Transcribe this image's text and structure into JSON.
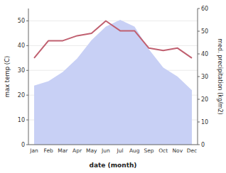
{
  "chart_data": {
    "type": "line",
    "categories": [
      "Jan",
      "Feb",
      "Mar",
      "Apr",
      "May",
      "Jun",
      "Jul",
      "Aug",
      "Sep",
      "Oct",
      "Nov",
      "Dec"
    ],
    "series": [
      {
        "type": "area",
        "axis": "y2",
        "color": "#c8d0f5",
        "values": [
          26,
          28,
          32,
          38,
          46,
          52,
          55,
          52,
          42,
          34,
          30,
          24
        ]
      },
      {
        "type": "line",
        "color": "#c06070",
        "values": [
          35,
          42,
          42,
          44,
          45,
          50,
          46,
          46,
          39,
          38,
          39,
          35
        ]
      }
    ],
    "x_label": "date (month)",
    "y_label": "max temp (C)",
    "y2_label": "med. precipitation (kg/m2)",
    "ylim": [
      0,
      55
    ],
    "yticks": [
      0,
      10,
      20,
      30,
      40,
      50
    ],
    "y2lim": [
      0,
      60
    ],
    "y2ticks": [
      0,
      10,
      20,
      30,
      40,
      50,
      60
    ],
    "grid": true
  }
}
